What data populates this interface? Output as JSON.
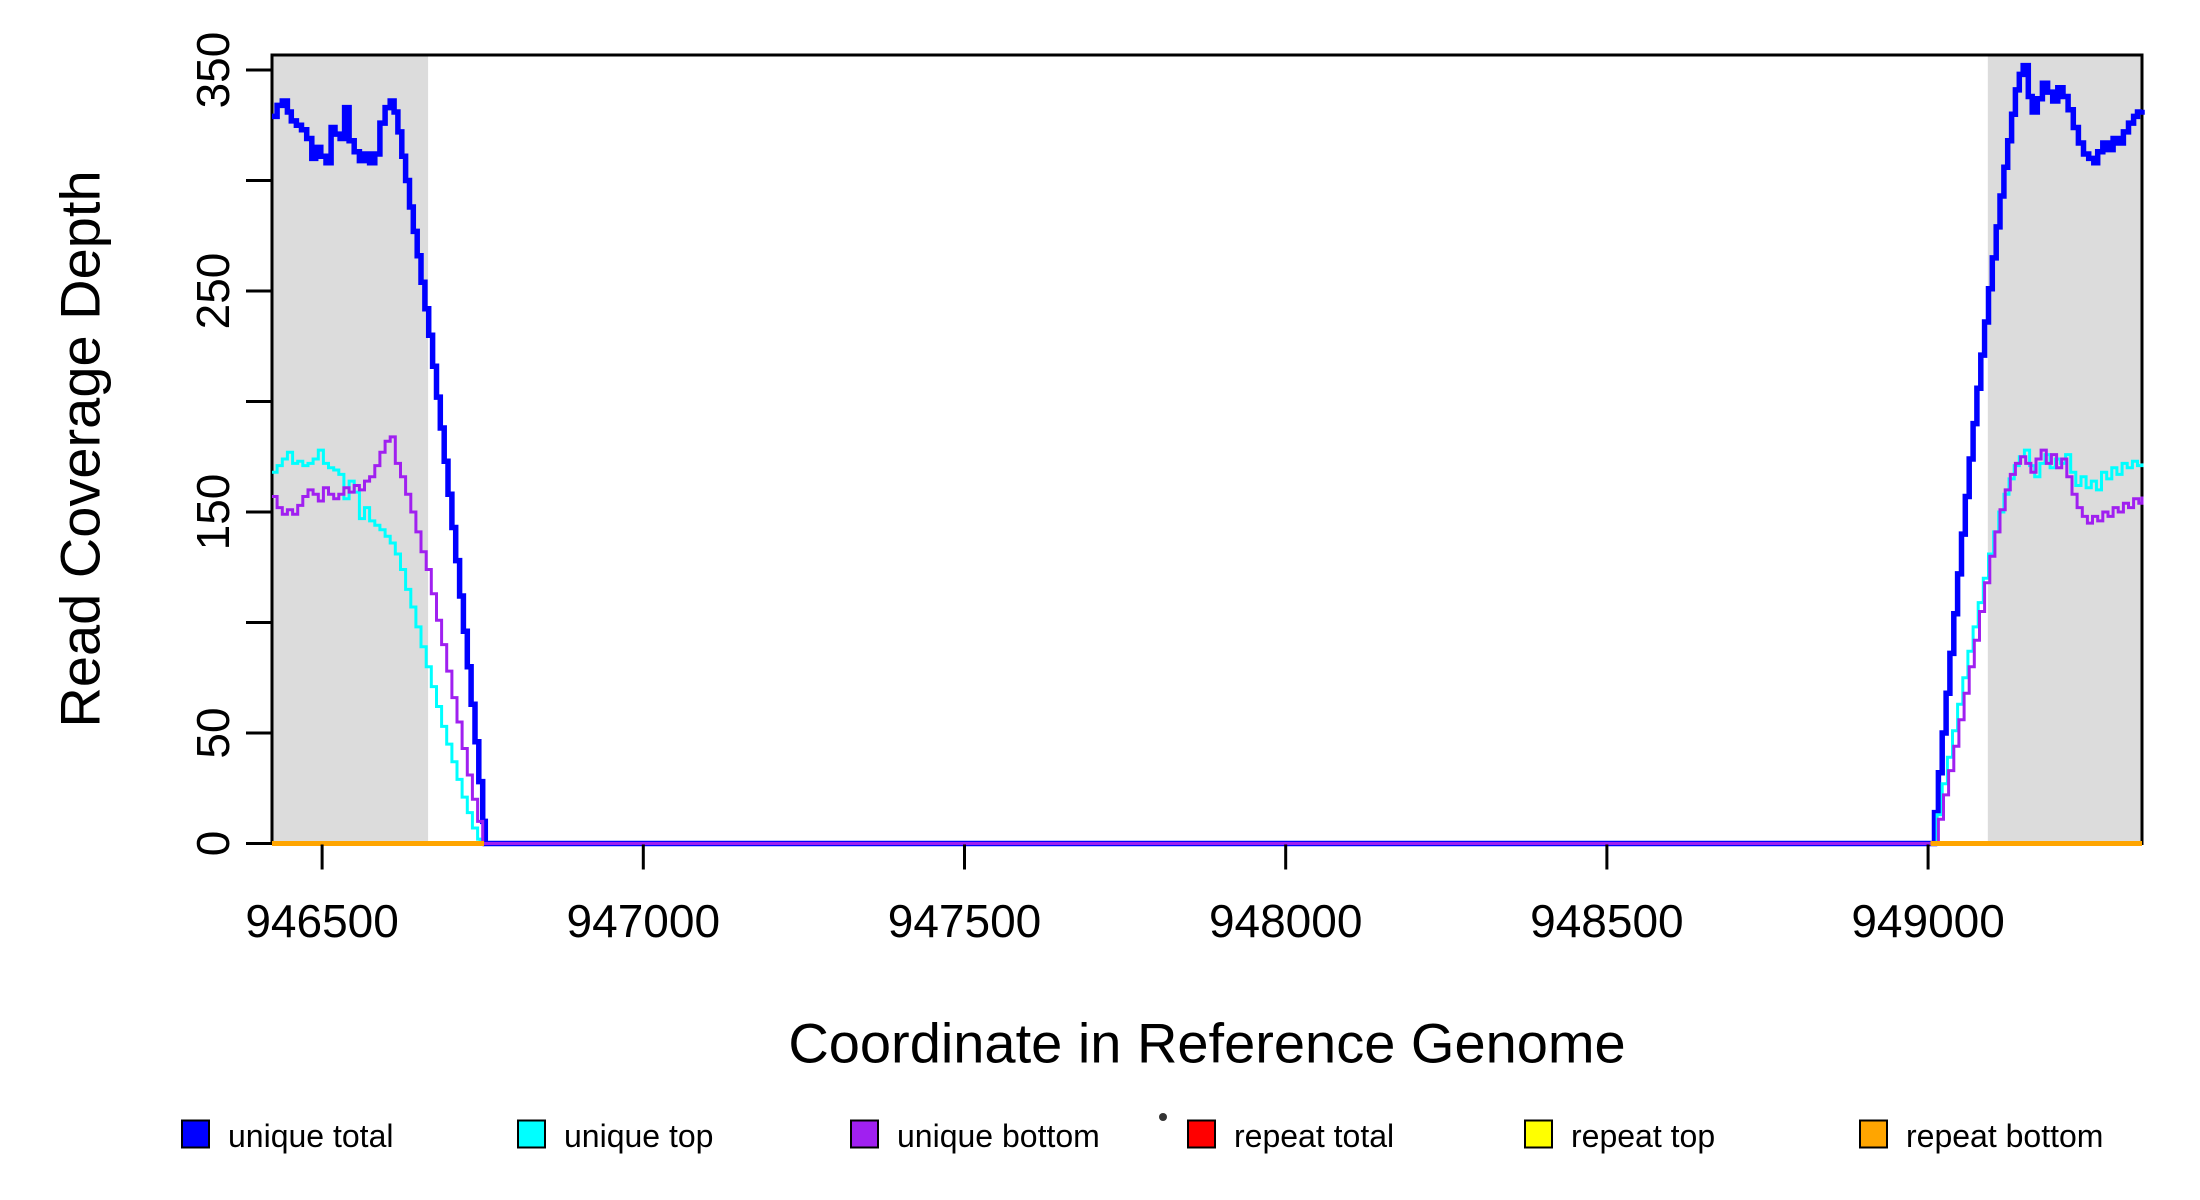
{
  "figure": {
    "background": "#FFFFFF",
    "frame_color": "#000000",
    "text_color": "#000000"
  },
  "chart_data": {
    "type": "line",
    "subtype": "step",
    "title": "",
    "xlabel": "Coordinate in Reference Genome",
    "ylabel": "Read Coverage Depth",
    "xlim": [
      946422,
      949333
    ],
    "ylim": [
      0,
      356.8
    ],
    "x_ticks": [
      946500,
      947000,
      947500,
      948000,
      948500,
      949000
    ],
    "y_ticks_all": [
      0,
      50,
      100,
      150,
      200,
      250,
      300,
      350
    ],
    "y_ticks_labeled": [
      0,
      50,
      150,
      250,
      350
    ],
    "grid": false,
    "legend_position": "bottom",
    "shaded_regions": [
      {
        "x0": 946422,
        "x1": 946665,
        "color": "#DCDCDC"
      },
      {
        "x0": 949093,
        "x1": 949333,
        "color": "#DCDCDC"
      }
    ],
    "series": [
      {
        "name": "unique total",
        "color": "#0000FF",
        "line_width": 5.5,
        "points": [
          [
            946422,
            329
          ],
          [
            946430,
            334
          ],
          [
            946438,
            336
          ],
          [
            946446,
            331
          ],
          [
            946452,
            327
          ],
          [
            946460,
            325
          ],
          [
            946468,
            323
          ],
          [
            946476,
            319
          ],
          [
            946484,
            310
          ],
          [
            946490,
            315
          ],
          [
            946498,
            311
          ],
          [
            946506,
            308
          ],
          [
            946514,
            324
          ],
          [
            946520,
            321
          ],
          [
            946528,
            319
          ],
          [
            946535,
            333
          ],
          [
            946542,
            318
          ],
          [
            946550,
            313
          ],
          [
            946558,
            309
          ],
          [
            946566,
            312
          ],
          [
            946574,
            308
          ],
          [
            946582,
            312
          ],
          [
            946590,
            326
          ],
          [
            946598,
            333
          ],
          [
            946606,
            336
          ],
          [
            946612,
            331
          ],
          [
            946618,
            322
          ],
          [
            946624,
            311
          ],
          [
            946630,
            300
          ],
          [
            946636,
            288
          ],
          [
            946642,
            277
          ],
          [
            946648,
            266
          ],
          [
            946654,
            254
          ],
          [
            946660,
            242
          ],
          [
            946666,
            230
          ],
          [
            946672,
            216
          ],
          [
            946678,
            202
          ],
          [
            946684,
            188
          ],
          [
            946690,
            173
          ],
          [
            946696,
            158
          ],
          [
            946702,
            143
          ],
          [
            946708,
            128
          ],
          [
            946714,
            112
          ],
          [
            946720,
            96
          ],
          [
            946726,
            80
          ],
          [
            946732,
            63
          ],
          [
            946738,
            46
          ],
          [
            946744,
            28
          ],
          [
            946750,
            10
          ],
          [
            946754,
            0
          ],
          [
            949004,
            0
          ],
          [
            949010,
            14
          ],
          [
            949016,
            32
          ],
          [
            949022,
            50
          ],
          [
            949028,
            68
          ],
          [
            949034,
            86
          ],
          [
            949040,
            104
          ],
          [
            949046,
            122
          ],
          [
            949052,
            140
          ],
          [
            949058,
            157
          ],
          [
            949064,
            174
          ],
          [
            949070,
            190
          ],
          [
            949076,
            206
          ],
          [
            949082,
            221
          ],
          [
            949088,
            236
          ],
          [
            949094,
            251
          ],
          [
            949100,
            265
          ],
          [
            949106,
            279
          ],
          [
            949112,
            293
          ],
          [
            949118,
            306
          ],
          [
            949124,
            318
          ],
          [
            949130,
            330
          ],
          [
            949136,
            341
          ],
          [
            949142,
            348
          ],
          [
            949148,
            352
          ],
          [
            949156,
            338
          ],
          [
            949162,
            331
          ],
          [
            949170,
            337
          ],
          [
            949178,
            344
          ],
          [
            949186,
            340
          ],
          [
            949194,
            336
          ],
          [
            949202,
            342
          ],
          [
            949210,
            338
          ],
          [
            949218,
            332
          ],
          [
            949226,
            324
          ],
          [
            949234,
            317
          ],
          [
            949242,
            312
          ],
          [
            949250,
            310
          ],
          [
            949258,
            308
          ],
          [
            949264,
            313
          ],
          [
            949272,
            317
          ],
          [
            949280,
            314
          ],
          [
            949288,
            319
          ],
          [
            949296,
            317
          ],
          [
            949304,
            322
          ],
          [
            949312,
            326
          ],
          [
            949320,
            329
          ],
          [
            949326,
            331
          ],
          [
            949333,
            332
          ]
        ]
      },
      {
        "name": "unique top",
        "color": "#00FFFF",
        "line_width": 3,
        "points": [
          [
            946422,
            168
          ],
          [
            946430,
            171
          ],
          [
            946438,
            174
          ],
          [
            946446,
            177
          ],
          [
            946454,
            172
          ],
          [
            946462,
            173
          ],
          [
            946470,
            171
          ],
          [
            946478,
            172
          ],
          [
            946486,
            174
          ],
          [
            946494,
            178
          ],
          [
            946502,
            172
          ],
          [
            946510,
            170
          ],
          [
            946518,
            169
          ],
          [
            946526,
            167
          ],
          [
            946534,
            156
          ],
          [
            946542,
            164
          ],
          [
            946550,
            159
          ],
          [
            946558,
            147
          ],
          [
            946566,
            152
          ],
          [
            946574,
            146
          ],
          [
            946582,
            144
          ],
          [
            946590,
            142
          ],
          [
            946598,
            139
          ],
          [
            946606,
            136
          ],
          [
            946614,
            131
          ],
          [
            946622,
            124
          ],
          [
            946630,
            115
          ],
          [
            946638,
            107
          ],
          [
            946646,
            98
          ],
          [
            946654,
            89
          ],
          [
            946662,
            80
          ],
          [
            946670,
            71
          ],
          [
            946678,
            62
          ],
          [
            946686,
            53
          ],
          [
            946694,
            45
          ],
          [
            946702,
            37
          ],
          [
            946710,
            29
          ],
          [
            946718,
            21
          ],
          [
            946726,
            14
          ],
          [
            946734,
            7
          ],
          [
            946742,
            2
          ],
          [
            946746,
            0
          ],
          [
            949006,
            0
          ],
          [
            949014,
            13
          ],
          [
            949022,
            27
          ],
          [
            949030,
            39
          ],
          [
            949038,
            51
          ],
          [
            949046,
            63
          ],
          [
            949054,
            75
          ],
          [
            949062,
            87
          ],
          [
            949070,
            98
          ],
          [
            949078,
            109
          ],
          [
            949086,
            120
          ],
          [
            949094,
            131
          ],
          [
            949102,
            141
          ],
          [
            949110,
            150
          ],
          [
            949118,
            158
          ],
          [
            949126,
            165
          ],
          [
            949134,
            171
          ],
          [
            949142,
            175
          ],
          [
            949150,
            178
          ],
          [
            949158,
            171
          ],
          [
            949166,
            166
          ],
          [
            949174,
            172
          ],
          [
            949182,
            176
          ],
          [
            949190,
            170
          ],
          [
            949198,
            174
          ],
          [
            949206,
            172
          ],
          [
            949214,
            176
          ],
          [
            949222,
            168
          ],
          [
            949230,
            162
          ],
          [
            949238,
            166
          ],
          [
            949246,
            161
          ],
          [
            949254,
            164
          ],
          [
            949262,
            160
          ],
          [
            949270,
            168
          ],
          [
            949278,
            165
          ],
          [
            949286,
            170
          ],
          [
            949294,
            167
          ],
          [
            949302,
            172
          ],
          [
            949310,
            170
          ],
          [
            949318,
            173
          ],
          [
            949326,
            171
          ],
          [
            949333,
            172
          ]
        ]
      },
      {
        "name": "unique bottom",
        "color": "#A020F0",
        "line_width": 3,
        "points": [
          [
            946422,
            157
          ],
          [
            946430,
            152
          ],
          [
            946438,
            149
          ],
          [
            946446,
            151
          ],
          [
            946454,
            149
          ],
          [
            946462,
            153
          ],
          [
            946470,
            157
          ],
          [
            946478,
            160
          ],
          [
            946486,
            158
          ],
          [
            946494,
            155
          ],
          [
            946502,
            161
          ],
          [
            946510,
            158
          ],
          [
            946518,
            156
          ],
          [
            946526,
            158
          ],
          [
            946534,
            161
          ],
          [
            946542,
            159
          ],
          [
            946550,
            162
          ],
          [
            946558,
            160
          ],
          [
            946566,
            164
          ],
          [
            946574,
            166
          ],
          [
            946582,
            171
          ],
          [
            946590,
            177
          ],
          [
            946598,
            182
          ],
          [
            946606,
            184
          ],
          [
            946614,
            172
          ],
          [
            946622,
            166
          ],
          [
            946630,
            158
          ],
          [
            946638,
            150
          ],
          [
            946646,
            141
          ],
          [
            946654,
            132
          ],
          [
            946662,
            124
          ],
          [
            946670,
            113
          ],
          [
            946678,
            101
          ],
          [
            946686,
            90
          ],
          [
            946694,
            78
          ],
          [
            946702,
            66
          ],
          [
            946710,
            55
          ],
          [
            946718,
            43
          ],
          [
            946726,
            31
          ],
          [
            946734,
            20
          ],
          [
            946742,
            10
          ],
          [
            946750,
            0
          ],
          [
            949008,
            0
          ],
          [
            949016,
            11
          ],
          [
            949024,
            22
          ],
          [
            949032,
            33
          ],
          [
            949040,
            44
          ],
          [
            949048,
            56
          ],
          [
            949056,
            68
          ],
          [
            949064,
            80
          ],
          [
            949072,
            92
          ],
          [
            949080,
            105
          ],
          [
            949088,
            118
          ],
          [
            949096,
            130
          ],
          [
            949104,
            141
          ],
          [
            949112,
            151
          ],
          [
            949120,
            160
          ],
          [
            949128,
            167
          ],
          [
            949136,
            172
          ],
          [
            949144,
            175
          ],
          [
            949152,
            172
          ],
          [
            949160,
            168
          ],
          [
            949168,
            174
          ],
          [
            949176,
            178
          ],
          [
            949184,
            172
          ],
          [
            949192,
            176
          ],
          [
            949200,
            170
          ],
          [
            949208,
            174
          ],
          [
            949216,
            166
          ],
          [
            949224,
            158
          ],
          [
            949232,
            152
          ],
          [
            949240,
            148
          ],
          [
            949248,
            145
          ],
          [
            949256,
            148
          ],
          [
            949264,
            146
          ],
          [
            949272,
            150
          ],
          [
            949280,
            148
          ],
          [
            949288,
            152
          ],
          [
            949296,
            150
          ],
          [
            949304,
            154
          ],
          [
            949312,
            152
          ],
          [
            949320,
            156
          ],
          [
            949328,
            154
          ],
          [
            949333,
            157
          ]
        ]
      },
      {
        "name": "repeat total",
        "color": "#FF0000",
        "line_width": 4,
        "segments": [
          [
            [
              946422,
              0
            ],
            [
              946752,
              0
            ]
          ],
          [
            [
              949004,
              0
            ],
            [
              949333,
              0
            ]
          ]
        ]
      },
      {
        "name": "repeat top",
        "color": "#FFFF00",
        "line_width": 4,
        "segments": [
          [
            [
              946422,
              0
            ],
            [
              946752,
              0
            ]
          ],
          [
            [
              949004,
              0
            ],
            [
              949333,
              0
            ]
          ]
        ]
      },
      {
        "name": "repeat bottom",
        "color": "#FFA500",
        "line_width": 5,
        "segments": [
          [
            [
              946422,
              0
            ],
            [
              946752,
              0
            ]
          ],
          [
            [
              949004,
              0
            ],
            [
              949333,
              0
            ]
          ]
        ]
      }
    ],
    "legend": {
      "entries": [
        {
          "label": "unique total",
          "color": "#0000FF"
        },
        {
          "label": "unique top",
          "color": "#00FFFF"
        },
        {
          "label": "unique bottom",
          "color": "#A020F0"
        },
        {
          "label": "repeat total",
          "color": "#FF0000"
        },
        {
          "label": "repeat top",
          "color": "#FFFF00"
        },
        {
          "label": "repeat bottom",
          "color": "#FFA500"
        }
      ]
    }
  }
}
